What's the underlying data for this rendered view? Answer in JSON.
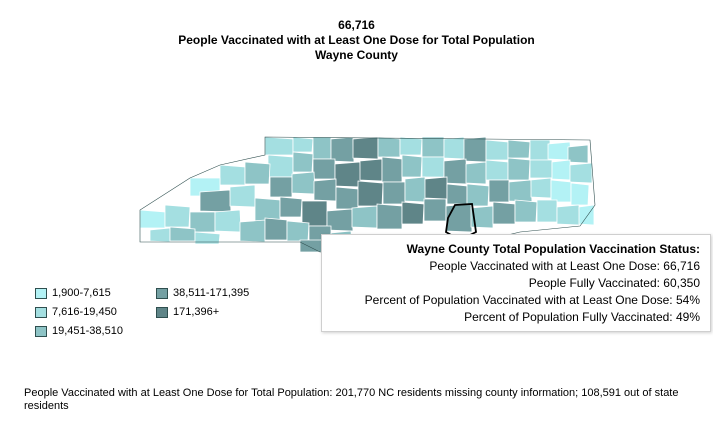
{
  "header": {
    "value": "66,716",
    "metric": "People Vaccinated with at Least One Dose for Total Population",
    "county": "Wayne County"
  },
  "colors": {
    "bin1": "#b3f2f5",
    "bin2": "#a4dfe1",
    "bin3": "#8ec4c6",
    "bin4": "#74a0a3",
    "bin5": "#5f8588",
    "border": "#2f4f4f",
    "highlight": "#000000"
  },
  "legend": [
    {
      "label": "1,900-7,615",
      "color": "#b3f2f5"
    },
    {
      "label": "7,616-19,450",
      "color": "#a4dfe1"
    },
    {
      "label": "19,451-38,510",
      "color": "#8ec4c6"
    },
    {
      "label": "38,511-171,395",
      "color": "#74a0a3"
    },
    {
      "label": "171,396+",
      "color": "#5f8588"
    }
  ],
  "tooltip": {
    "title": "Wayne County Total Population Vaccination Status:",
    "lines": [
      "People Vaccinated with at Least One Dose: 66,716",
      "People Fully Vaccinated: 60,350",
      "Percent of Population Vaccinated with at Least One Dose: 54%",
      "Percent of Population Fully Vaccinated: 49%"
    ]
  },
  "footnote": "People Vaccinated with at Least One Dose for Total Population:  201,770 NC residents missing county information; 108,591 out of state residents"
}
